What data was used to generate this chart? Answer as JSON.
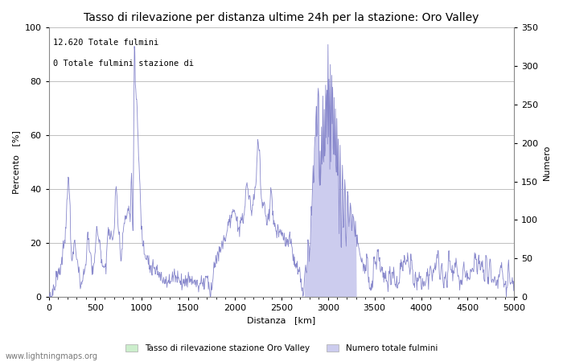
{
  "title": "Tasso di rilevazione per distanza ultime 24h per la stazione: Oro Valley",
  "xlabel": "Distanza   [km]",
  "ylabel_left": "Percento   [%]",
  "ylabel_right": "Numero",
  "annotation_line1": "12.620 Totale fulmini",
  "annotation_line2": "0 Totale fulmini stazione di",
  "xlim": [
    0,
    5000
  ],
  "ylim_left": [
    0,
    100
  ],
  "ylim_right": [
    0,
    350
  ],
  "xticks": [
    0,
    500,
    1000,
    1500,
    2000,
    2500,
    3000,
    3500,
    4000,
    4500,
    5000
  ],
  "yticks_left": [
    0,
    20,
    40,
    60,
    80,
    100
  ],
  "yticks_right": [
    0,
    50,
    100,
    150,
    200,
    250,
    300,
    350
  ],
  "line_color": "#8888cc",
  "fill_color": "#ccccee",
  "station_fill_color": "#cceecc",
  "legend_entry1": "Tasso di rilevazione stazione Oro Valley",
  "legend_entry2": "Numero totale fulmini",
  "watermark": "www.lightningmaps.org",
  "bg_color": "#ffffff",
  "grid_color": "#c0c0c0",
  "title_fontsize": 10,
  "label_fontsize": 8,
  "tick_fontsize": 8,
  "fill_x_start": 2750,
  "fill_x_end": 3300
}
